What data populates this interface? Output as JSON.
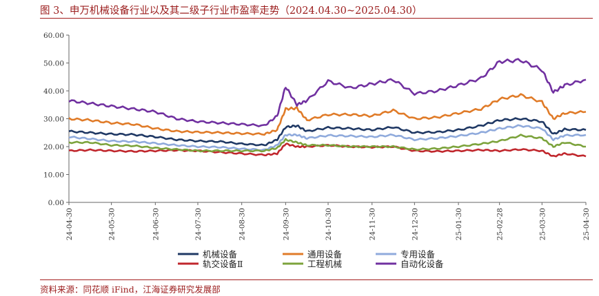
{
  "figure": {
    "title": "图 3、申万机械设备行业以及其二级子行业市盈率走势（2024.04.30~2025.04.30）",
    "source": "资料来源：同花顺 iFind，江海证券研究发展部"
  },
  "chart_data": {
    "type": "line",
    "title": "图 3、申万机械设备行业以及其二级子行业市盈率走势（2024.04.30~2025.04.30）",
    "xlabel": "",
    "ylabel": "",
    "ylim": [
      0,
      60
    ],
    "yticks": [
      "0.00",
      "10.00",
      "20.00",
      "30.00",
      "40.00",
      "50.00",
      "60.00"
    ],
    "x_ticks": [
      "24-04-30",
      "24-05-30",
      "24-06-30",
      "24-07-30",
      "24-08-30",
      "24-09-30",
      "24-10-30",
      "24-11-30",
      "24-12-30",
      "25-01-30",
      "25-02-28",
      "25-03-30",
      "25-04-30"
    ],
    "grid": false,
    "legend_position": "bottom",
    "x": [
      "24-04-30",
      "24-05-15",
      "24-05-30",
      "24-06-15",
      "24-06-30",
      "24-07-15",
      "24-07-30",
      "24-08-15",
      "24-08-30",
      "24-09-15",
      "24-09-24",
      "24-09-30",
      "24-10-08",
      "24-10-15",
      "24-10-30",
      "24-11-15",
      "24-11-30",
      "24-12-15",
      "24-12-30",
      "25-01-15",
      "25-01-30",
      "25-02-15",
      "25-02-28",
      "25-03-15",
      "25-03-30",
      "25-04-07",
      "25-04-15",
      "25-04-30"
    ],
    "series": [
      {
        "name": "机械设备",
        "color": "#1f3864",
        "values": [
          25.5,
          25.0,
          24.5,
          24.3,
          23.5,
          22.5,
          22.0,
          21.8,
          21.0,
          20.5,
          22.5,
          27.0,
          27.5,
          25.5,
          26.8,
          26.5,
          26.0,
          27.0,
          25.0,
          25.2,
          26.0,
          27.5,
          29.5,
          30.0,
          29.0,
          24.5,
          26.2,
          26.0
        ]
      },
      {
        "name": "通用设备",
        "color": "#e07b28",
        "values": [
          30.0,
          29.5,
          28.5,
          28.0,
          26.5,
          25.5,
          25.2,
          25.0,
          24.7,
          24.5,
          26.0,
          33.5,
          33.8,
          29.5,
          31.5,
          31.5,
          31.0,
          33.0,
          30.0,
          30.5,
          32.0,
          33.5,
          37.0,
          38.5,
          36.0,
          30.0,
          32.0,
          32.5
        ]
      },
      {
        "name": "专用设备",
        "color": "#8faadc",
        "values": [
          23.5,
          22.8,
          22.0,
          21.8,
          21.2,
          20.5,
          20.0,
          19.8,
          19.2,
          18.8,
          20.5,
          24.2,
          24.2,
          23.0,
          24.0,
          23.8,
          23.5,
          24.2,
          22.5,
          23.0,
          23.8,
          25.0,
          26.5,
          27.5,
          26.5,
          22.5,
          24.0,
          24.2
        ]
      },
      {
        "name": "轨交设备Ⅱ",
        "color": "#c0262c",
        "values": [
          18.5,
          18.8,
          18.5,
          18.3,
          18.5,
          18.7,
          18.5,
          18.0,
          17.5,
          17.0,
          17.5,
          21.0,
          20.0,
          20.0,
          20.5,
          20.0,
          19.8,
          20.0,
          18.5,
          18.3,
          18.5,
          18.8,
          18.5,
          19.0,
          18.5,
          16.5,
          17.5,
          16.5
        ]
      },
      {
        "name": "工程机械",
        "color": "#7ca33c",
        "values": [
          21.5,
          21.5,
          20.5,
          20.3,
          19.5,
          19.0,
          18.5,
          18.5,
          18.5,
          18.5,
          19.5,
          22.5,
          21.5,
          20.5,
          20.5,
          20.0,
          20.0,
          20.0,
          19.0,
          19.3,
          20.0,
          21.0,
          22.0,
          24.0,
          23.0,
          20.0,
          21.5,
          20.0
        ]
      },
      {
        "name": "自动化设备",
        "color": "#7030a0",
        "values": [
          36.5,
          35.5,
          34.5,
          33.5,
          32.5,
          30.0,
          29.0,
          28.5,
          28.0,
          27.5,
          31.0,
          41.5,
          35.0,
          36.5,
          43.5,
          41.0,
          42.5,
          44.0,
          39.0,
          40.0,
          42.0,
          44.5,
          50.5,
          51.0,
          47.5,
          39.5,
          42.0,
          44.0
        ]
      }
    ]
  }
}
